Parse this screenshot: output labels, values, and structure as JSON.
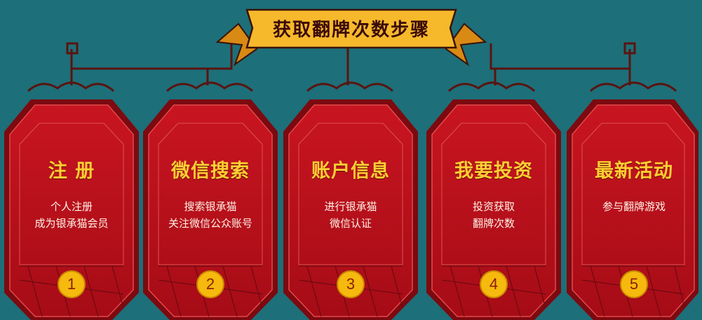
{
  "banner": {
    "title": "获取翻牌次数步骤"
  },
  "steps": [
    {
      "title": "注 册",
      "lines": [
        "个人注册",
        "成为银承猫会员"
      ],
      "number": "1"
    },
    {
      "title": "微信搜索",
      "lines": [
        "搜索银承猫",
        "关注微信公众账号"
      ],
      "number": "2"
    },
    {
      "title": "账户信息",
      "lines": [
        "进行银承猫",
        "微信认证"
      ],
      "number": "3"
    },
    {
      "title": "我要投资",
      "lines": [
        "投资获取",
        "翻牌次数"
      ],
      "number": "4"
    },
    {
      "title": "最新活动",
      "lines": [
        "参与翻牌游戏"
      ],
      "number": "5"
    }
  ],
  "colors": {
    "background": "#1d6f79",
    "card_red": "#c4101c",
    "title_gold": "#ffcf33",
    "banner_gold": "#f6b92b",
    "badge": "#f6b90d"
  }
}
